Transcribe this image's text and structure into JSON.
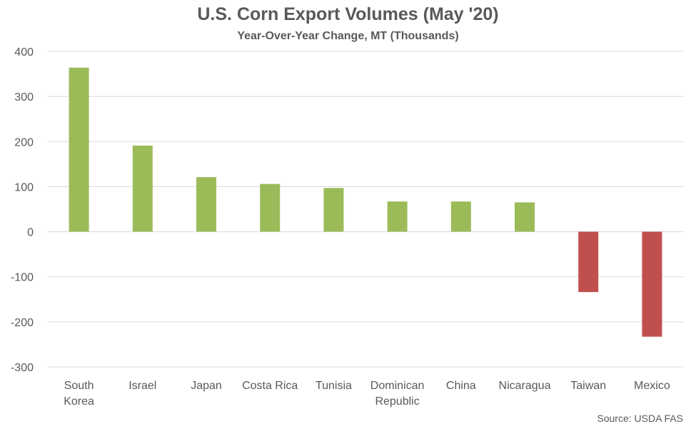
{
  "chart_data": {
    "type": "bar",
    "title": "U.S. Corn Export Volumes (May '20)",
    "subtitle": "Year-Over-Year Change, MT (Thousands)",
    "xlabel": "",
    "ylabel": "",
    "ylim": [
      -300,
      400
    ],
    "yticks": [
      400,
      300,
      200,
      100,
      0,
      -100,
      -200,
      -300
    ],
    "categories": [
      "South Korea",
      "Israel",
      "Japan",
      "Costa Rica",
      "Tunisia",
      "Dominican Republic",
      "China",
      "Nicaragua",
      "Taiwan",
      "Mexico"
    ],
    "category_lines": [
      [
        "South",
        "Korea"
      ],
      [
        "Israel"
      ],
      [
        "Japan"
      ],
      [
        "Costa Rica"
      ],
      [
        "Tunisia"
      ],
      [
        "Dominican",
        "Republic"
      ],
      [
        "China"
      ],
      [
        "Nicaragua"
      ],
      [
        "Taiwan"
      ],
      [
        "Mexico"
      ]
    ],
    "values": [
      364,
      191,
      121,
      106,
      97,
      67,
      67,
      65,
      -134,
      -233
    ],
    "grid": true,
    "colors": {
      "positive": "#9bbb59",
      "negative": "#c0504d",
      "grid": "#d9d9d9",
      "text": "#595959"
    }
  },
  "source": "Source: USDA FAS"
}
